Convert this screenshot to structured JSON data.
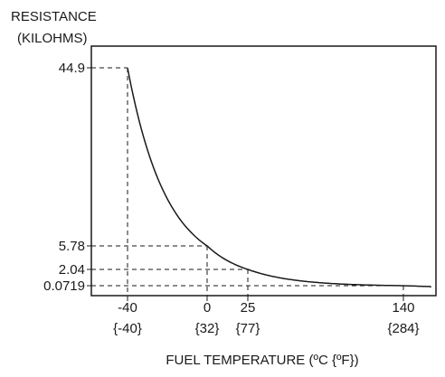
{
  "chart_data": {
    "type": "line",
    "ylabel_line1": "RESISTANCE",
    "ylabel_line2": "(KILOHMS)",
    "xlabel": "FUEL TEMPERATURE (ºC {ºF})",
    "x_ticks": [
      {
        "c": -40,
        "f": "{-40}"
      },
      {
        "c": 0,
        "f": "{32}"
      },
      {
        "c": 25,
        "f": "{77}"
      },
      {
        "c": 140,
        "f": "{284}"
      }
    ],
    "y_ticks": [
      44.9,
      5.78,
      2.04,
      0.0719
    ],
    "points": [
      {
        "x": -40,
        "y": 44.9
      },
      {
        "x": 0,
        "y": 5.78
      },
      {
        "x": 25,
        "y": 2.04
      },
      {
        "x": 140,
        "y": 0.0719
      }
    ],
    "grid": "dashed guide lines from each marked point to both axes",
    "colors": {
      "line": "#1a1a1a",
      "text": "#1a1a1a"
    }
  }
}
